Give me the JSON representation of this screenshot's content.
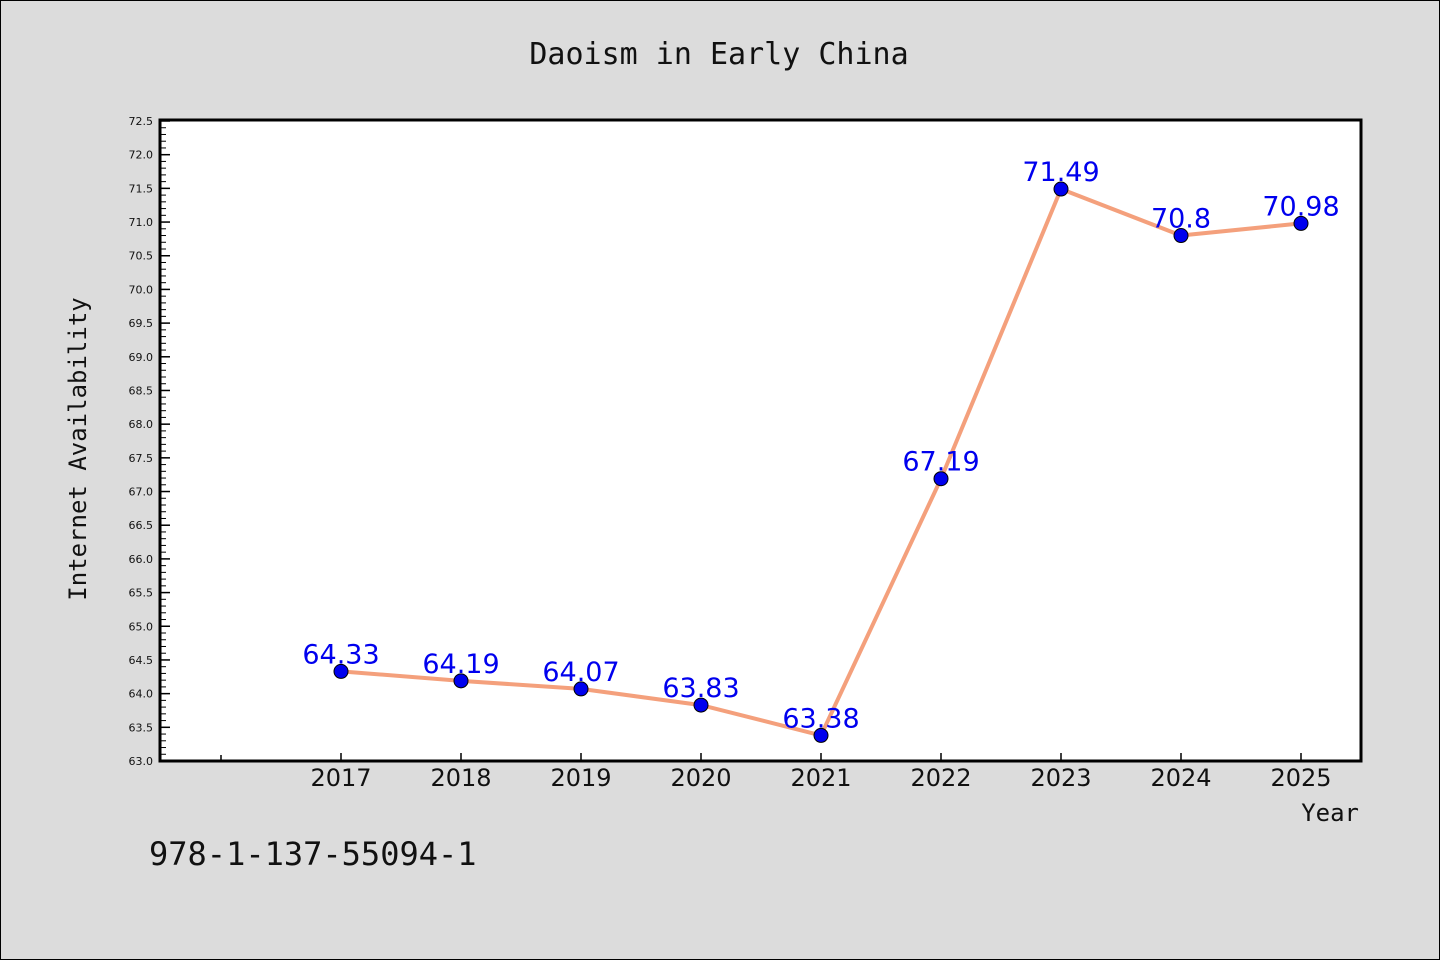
{
  "chart_data": {
    "type": "line",
    "title": "Daoism in Early China",
    "xlabel": "Year",
    "ylabel": "Internet Availability",
    "categories": [
      "2017",
      "2018",
      "2019",
      "2020",
      "2021",
      "2022",
      "2023",
      "2024",
      "2025"
    ],
    "series": [
      {
        "values": [
          64.33,
          64.19,
          64.07,
          63.83,
          63.38,
          67.19,
          71.49,
          70.8,
          70.98
        ],
        "data_labels": [
          "64.33",
          "64.19",
          "64.07",
          "63.83",
          "63.38",
          "67.19",
          "71.49",
          "70.8",
          "70.98"
        ],
        "line_color": "#f4a07c",
        "marker_color": "#0000ee"
      }
    ],
    "ylim": [
      63.0,
      72.5
    ],
    "yticks": [
      "63.0",
      "63.5",
      "64.0",
      "64.5",
      "65.0",
      "65.5",
      "66.0",
      "66.5",
      "67.0",
      "67.5",
      "68.0",
      "68.5",
      "69.0",
      "69.5",
      "70.0",
      "70.5",
      "71.0",
      "71.5",
      "72.0",
      "72.5"
    ],
    "grid": false,
    "legend": "none"
  },
  "footnote": "978-1-137-55094-1"
}
